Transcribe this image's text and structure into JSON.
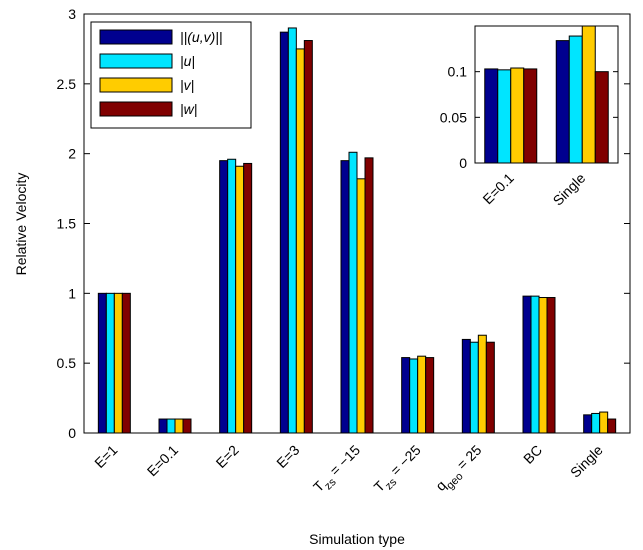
{
  "chart_data": [
    {
      "type": "bar",
      "xlabel": "Simulation type",
      "ylabel": "Relative Velocity",
      "ylim": [
        0,
        3
      ],
      "yticks": [
        "0",
        "0.5",
        "1",
        "1.5",
        "2",
        "2.5",
        "3"
      ],
      "grid": false,
      "legend_position": "top-left",
      "categories": [
        {
          "label": "E=1"
        },
        {
          "label": "E=0.1"
        },
        {
          "label": "E=2"
        },
        {
          "label": "E=3"
        },
        {
          "label": "T",
          "sub": "zs",
          "rest": " = −15"
        },
        {
          "label": "T",
          "sub": "zs",
          "rest": " = −25"
        },
        {
          "label": "q",
          "sub": "geo",
          "rest": " = 25"
        },
        {
          "label": "BC"
        },
        {
          "label": "Single"
        }
      ],
      "series": [
        {
          "name": "||(u,v)||",
          "color": "#00008f",
          "values": [
            1.0,
            0.1,
            1.95,
            2.87,
            1.95,
            0.54,
            0.67,
            0.98,
            0.13
          ]
        },
        {
          "name": "|u|",
          "color": "#00e5ff",
          "values": [
            1.0,
            0.1,
            1.96,
            2.9,
            2.01,
            0.53,
            0.65,
            0.98,
            0.14
          ]
        },
        {
          "name": "|v|",
          "color": "#ffcc00",
          "values": [
            1.0,
            0.1,
            1.91,
            2.75,
            1.82,
            0.55,
            0.7,
            0.97,
            0.15
          ]
        },
        {
          "name": "|w|",
          "color": "#800000",
          "values": [
            1.0,
            0.1,
            1.93,
            2.81,
            1.97,
            0.54,
            0.65,
            0.97,
            0.1
          ]
        }
      ]
    },
    {
      "type": "bar",
      "inset": true,
      "ylim": [
        0,
        0.15
      ],
      "yticks": [
        "0",
        "0.05",
        "0.1"
      ],
      "categories": [
        {
          "label": "E=0.1"
        },
        {
          "label": "Single"
        }
      ],
      "series": [
        {
          "name": "||(u,v)||",
          "color": "#00008f",
          "values": [
            0.103,
            0.134
          ]
        },
        {
          "name": "|u|",
          "color": "#00e5ff",
          "values": [
            0.102,
            0.139
          ]
        },
        {
          "name": "|v|",
          "color": "#ffcc00",
          "values": [
            0.104,
            0.15
          ]
        },
        {
          "name": "|w|",
          "color": "#800000",
          "values": [
            0.103,
            0.1
          ]
        }
      ]
    }
  ]
}
